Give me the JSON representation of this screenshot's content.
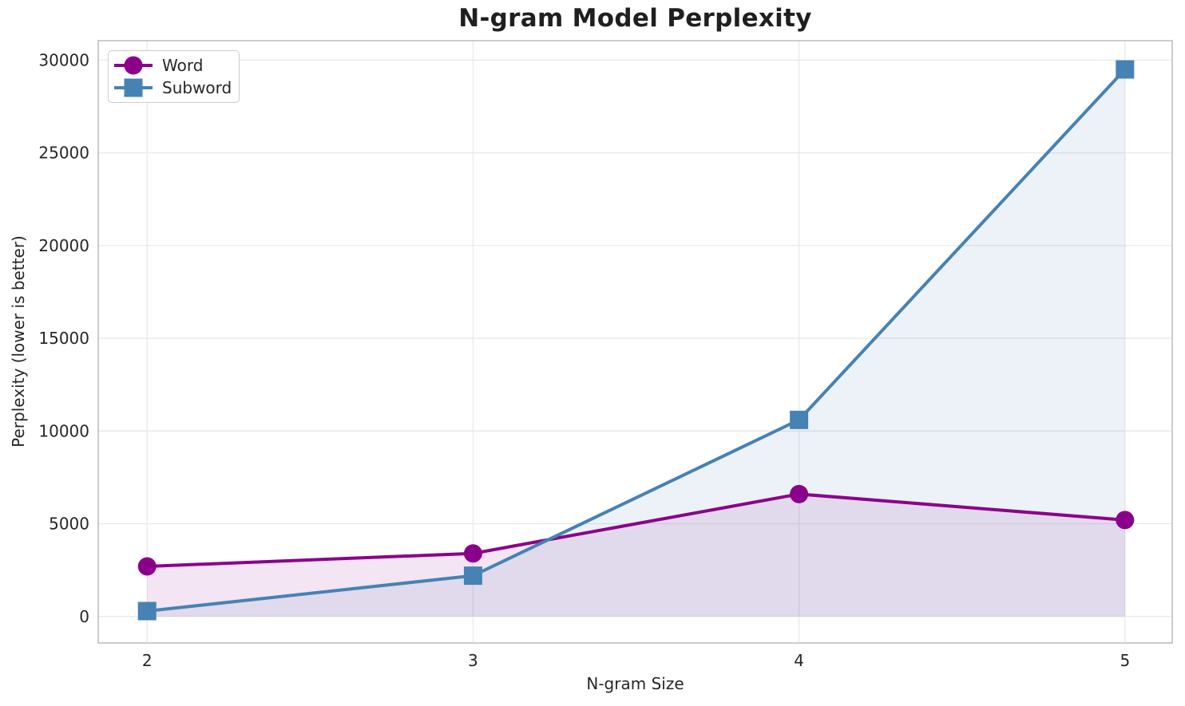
{
  "chart_data": {
    "type": "line",
    "title": "N-gram Model Perplexity",
    "xlabel": "N-gram Size",
    "ylabel": "Perplexity (lower is better)",
    "x": [
      2,
      3,
      4,
      5
    ],
    "series": [
      {
        "name": "Word",
        "values": [
          2700,
          3400,
          6600,
          5200
        ],
        "color": "#8B008B",
        "marker": "circle",
        "fill_alpha": 0.1
      },
      {
        "name": "Subword",
        "values": [
          290,
          2200,
          10600,
          29500
        ],
        "color": "#4682B4",
        "marker": "square",
        "fill_alpha": 0.1
      }
    ],
    "xticks": [
      2,
      3,
      4,
      5
    ],
    "yticks": [
      0,
      5000,
      10000,
      15000,
      20000,
      25000,
      30000
    ],
    "xlim": [
      1.85,
      5.145
    ],
    "ylim": [
      -1430,
      31050
    ],
    "grid": true,
    "fill_to_zero": true,
    "legend_position": "upper left",
    "style": {
      "grid_color": "#e8e8e8",
      "spine_color": "#c6c6c6",
      "text_color": "#262626",
      "line_width": 4,
      "marker_size": 23
    }
  }
}
